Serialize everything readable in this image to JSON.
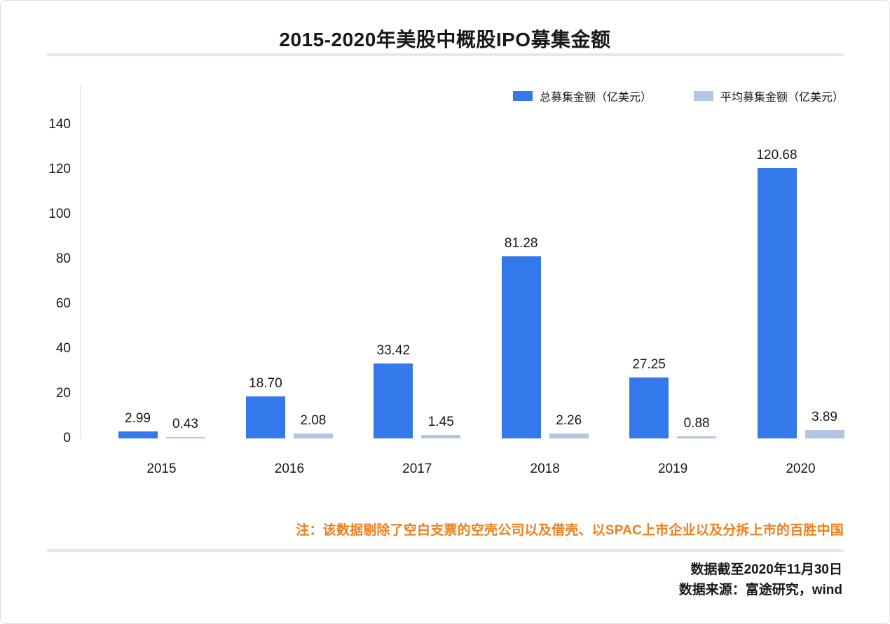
{
  "title": "2015-2020年美股中概股IPO募集金额",
  "legend": [
    {
      "key": "total_raised",
      "label": "总募集金额（亿美元）",
      "color": "#3379ec"
    },
    {
      "key": "average_raised",
      "label": "平均募集金额（亿美元）",
      "color": "#b2c5e2"
    }
  ],
  "chart_data": {
    "type": "bar",
    "categories": [
      "2015",
      "2016",
      "2017",
      "2018",
      "2019",
      "2020"
    ],
    "series": [
      {
        "key": "total_raised",
        "name": "总募集金额（亿美元）",
        "color": "#3379ec",
        "values": [
          2.99,
          18.7,
          33.42,
          81.28,
          27.25,
          120.68
        ],
        "labels": [
          "2.99",
          "18.70",
          "33.42",
          "81.28",
          "27.25",
          "120.68"
        ]
      },
      {
        "key": "average_raised",
        "name": "平均募集金额（亿美元）",
        "color": "#b2c5e2",
        "values": [
          0.43,
          2.08,
          1.45,
          2.26,
          0.88,
          3.89
        ],
        "labels": [
          "0.43",
          "2.08",
          "1.45",
          "2.26",
          "0.88",
          "3.89"
        ]
      }
    ],
    "title": "2015-2020年美股中概股IPO募集金额",
    "xlabel": "",
    "ylabel": "",
    "ylim": [
      0,
      140
    ],
    "yticks": [
      0,
      20,
      40,
      60,
      80,
      100,
      120,
      140
    ],
    "grid": false,
    "legend_position": "top-right",
    "value_labels_shown": true
  },
  "note": "注：该数据剔除了空白支票的空壳公司以及借壳、以SPAC上市企业以及分拆上市的百胜中国",
  "footer": {
    "line1": "数据截至2020年11月30日",
    "line2": "数据来源：富途研究，wind"
  },
  "colors": {
    "primary_bar": "#3379ec",
    "secondary_bar": "#b2c5e2",
    "text": "#17181a",
    "note_orange": "#f07e1b",
    "divider": "#e3e9f2",
    "axis_line": "#dcdce0"
  }
}
